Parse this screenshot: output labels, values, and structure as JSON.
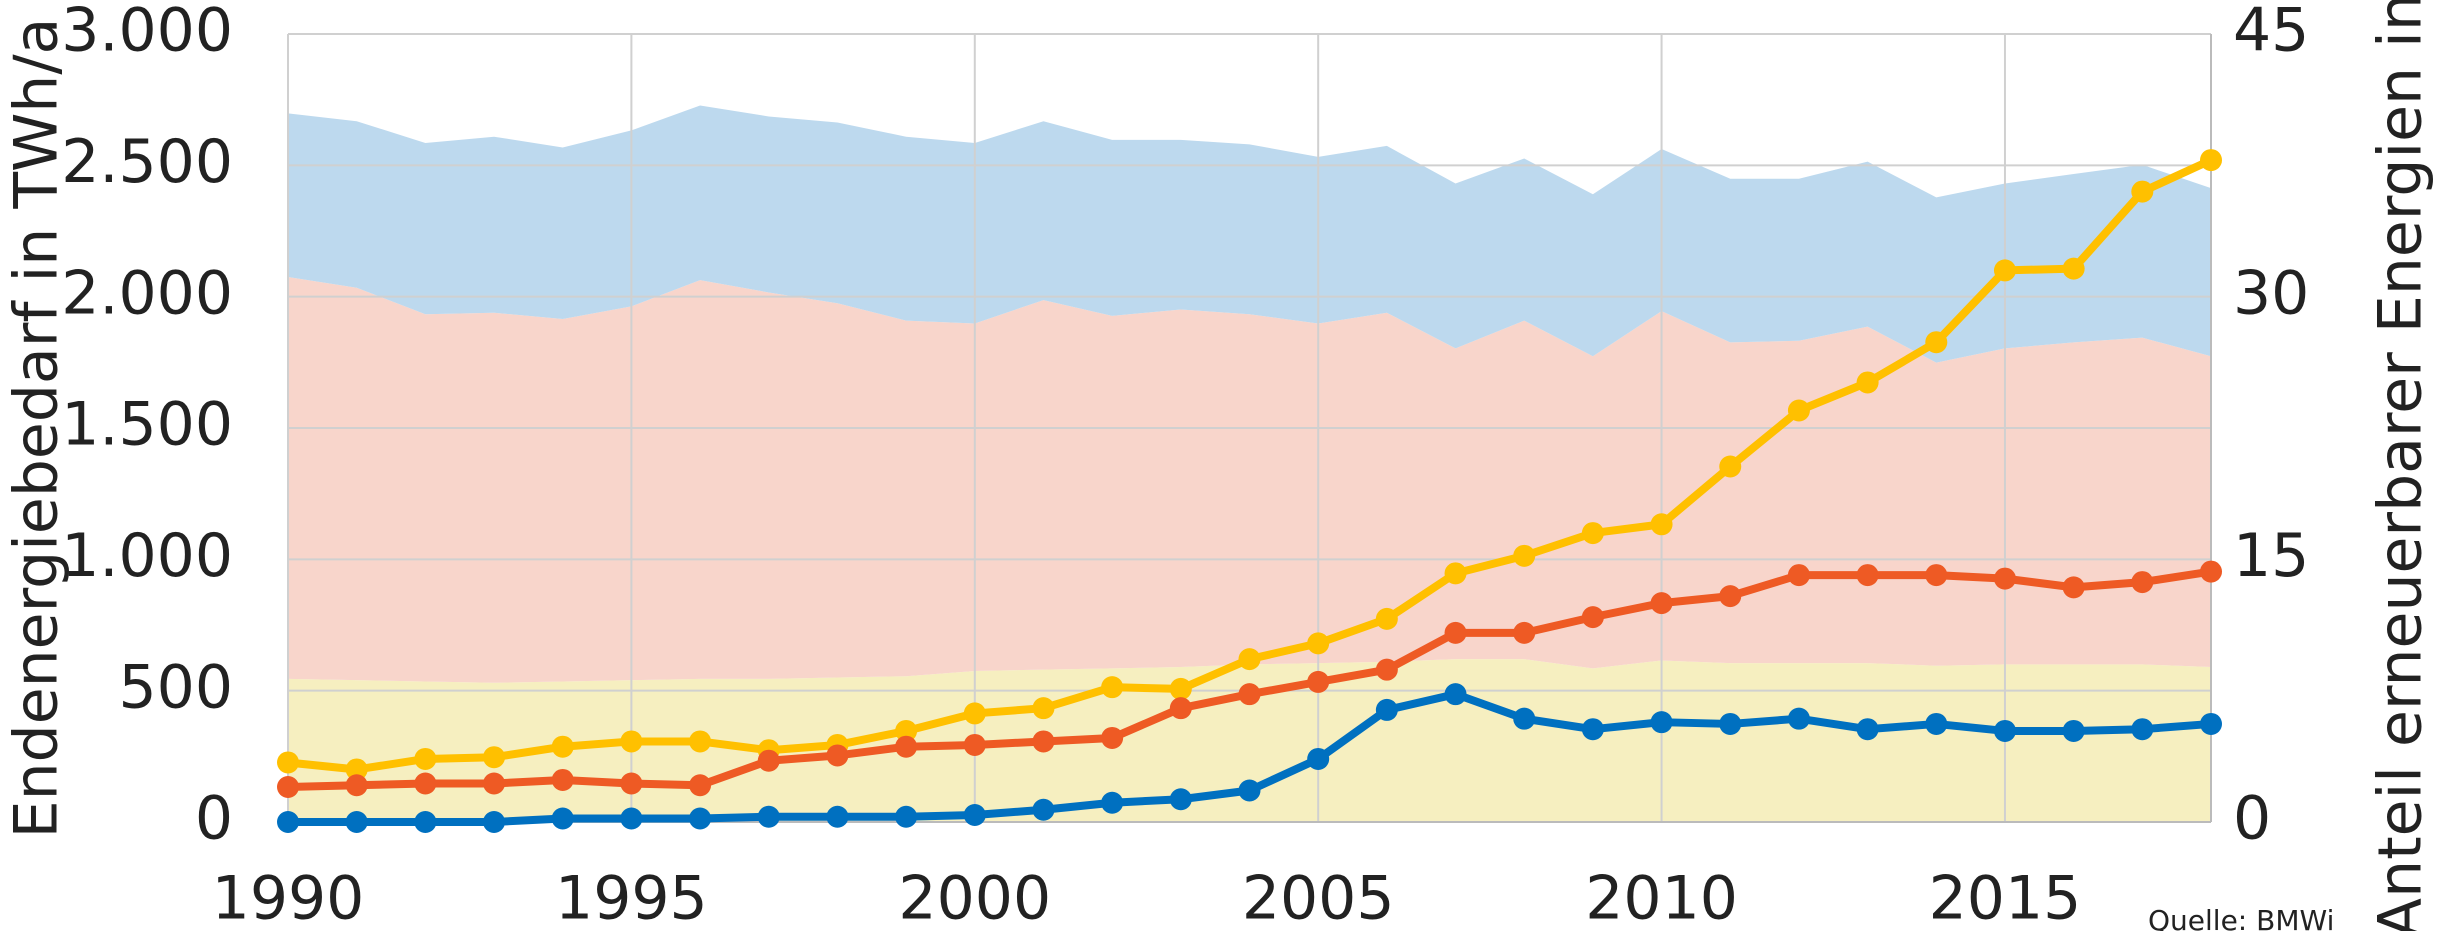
{
  "chart_data": {
    "type": "stacked-area-line",
    "y_label": "Endenergiebedarf in TWh/a",
    "y2_label": "Anteil erneuerbarer Energien in %",
    "source": "Quelle: BMWi",
    "x": [
      1990,
      1991,
      1992,
      1993,
      1994,
      1995,
      1996,
      1997,
      1998,
      1999,
      2000,
      2001,
      2002,
      2003,
      2004,
      2005,
      2006,
      2007,
      2008,
      2009,
      2010,
      2011,
      2012,
      2013,
      2014,
      2015,
      2016,
      2017,
      2018
    ],
    "xlim": [
      1990,
      2018
    ],
    "xticks": [
      1990,
      1995,
      2000,
      2005,
      2010,
      2015
    ],
    "ylim": [
      0,
      3000
    ],
    "yticks": [
      0,
      {
        "value": 500,
        "label": "500"
      },
      {
        "value": 1000,
        "label": "1.000"
      },
      {
        "value": 1500,
        "label": "1.500"
      },
      {
        "value": 2000,
        "label": "2.000"
      },
      {
        "value": 2500,
        "label": "2.500"
      },
      {
        "value": 3000,
        "label": "3.000"
      }
    ],
    "y2lim": [
      0,
      45
    ],
    "y2ticks": [
      0,
      15,
      30,
      45
    ],
    "grid": true,
    "areas": [
      {
        "color": "#f6efc0",
        "values": [
          545,
          540,
          535,
          530,
          535,
          540,
          545,
          545,
          550,
          555,
          575,
          580,
          585,
          590,
          600,
          605,
          610,
          620,
          620,
          585,
          615,
          605,
          605,
          605,
          595,
          600,
          600,
          600,
          590
        ]
      },
      {
        "color": "#f8d5cb",
        "values": [
          1530,
          1494,
          1398,
          1409,
          1380,
          1423,
          1518,
          1471,
          1425,
          1354,
          1323,
          1407,
          1342,
          1361,
          1333,
          1293,
          1329,
          1183,
          1289,
          1188,
          1330,
          1221,
          1227,
          1281,
          1154,
          1203,
          1226,
          1244,
          1183
        ]
      },
      {
        "color": "#bdd9ee",
        "values": [
          623,
          634,
          652,
          670,
          653,
          670,
          665,
          670,
          688,
          700,
          687,
          681,
          670,
          646,
          647,
          634,
          635,
          628,
          617,
          617,
          617,
          623,
          617,
          628,
          629,
          628,
          641,
          658,
          640
        ]
      }
    ],
    "series": [
      {
        "color": "#ffc000",
        "axis": "y2",
        "values": [
          3.4,
          3.0,
          3.6,
          3.7,
          4.3,
          4.6,
          4.6,
          4.1,
          4.4,
          5.2,
          6.2,
          6.5,
          7.7,
          7.6,
          9.3,
          10.2,
          11.6,
          14.2,
          15.2,
          16.5,
          17.0,
          20.3,
          23.5,
          25.1,
          27.4,
          31.5,
          31.6,
          36.0,
          37.8
        ]
      },
      {
        "color": "#ee5a24",
        "axis": "y2",
        "values": [
          2.0,
          2.1,
          2.2,
          2.2,
          2.4,
          2.2,
          2.1,
          3.5,
          3.8,
          4.3,
          4.4,
          4.6,
          4.8,
          6.5,
          7.3,
          8.0,
          8.7,
          10.8,
          10.8,
          11.7,
          12.5,
          12.9,
          14.1,
          14.1,
          14.1,
          13.9,
          13.4,
          13.7,
          14.3
        ]
      },
      {
        "color": "#0070c0",
        "axis": "y2",
        "values": [
          0,
          0,
          0,
          0,
          0.2,
          0.2,
          0.2,
          0.3,
          0.3,
          0.3,
          0.4,
          0.7,
          1.1,
          1.3,
          1.8,
          3.6,
          6.4,
          7.3,
          5.9,
          5.3,
          5.7,
          5.6,
          5.9,
          5.3,
          5.6,
          5.2,
          5.2,
          5.3,
          5.6
        ]
      }
    ]
  }
}
